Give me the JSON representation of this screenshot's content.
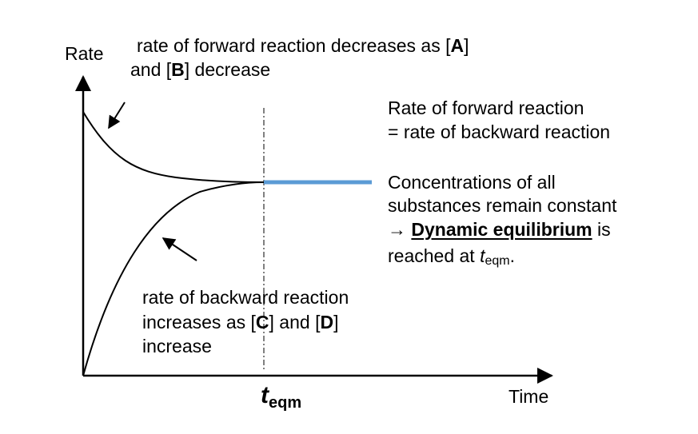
{
  "axes": {
    "y_label": "Rate",
    "x_label": "Time",
    "t_eqm": {
      "main": "t",
      "sub": "eqm"
    }
  },
  "annotations": {
    "forward": {
      "line1": "rate of forward reaction decreases as [",
      "A": "A",
      "line1_end": "]",
      "line2_start": "and [",
      "B": "B",
      "line2_end": "] decrease"
    },
    "backward": {
      "line1": "rate of backward reaction",
      "line2_start": "increases as [",
      "C": "C",
      "mid": "] and [",
      "D": "D",
      "line2_end": "]",
      "line3": "increase"
    },
    "equal_rates": {
      "line1": "Rate of forward reaction",
      "line2": "= rate of backward reaction"
    },
    "equilibrium": {
      "line1": "Concentrations of all",
      "line2": "substances remain constant",
      "line3_arrow": "→ ",
      "line3_bold": "Dynamic equilibrium",
      "line3_end": " is",
      "line4_start": "reached at ",
      "line4_t": "t",
      "line4_sub": "eqm",
      "line4_end": "."
    }
  },
  "colors": {
    "curve": "#000000",
    "equilibrium_line": "#5b9bd5"
  }
}
